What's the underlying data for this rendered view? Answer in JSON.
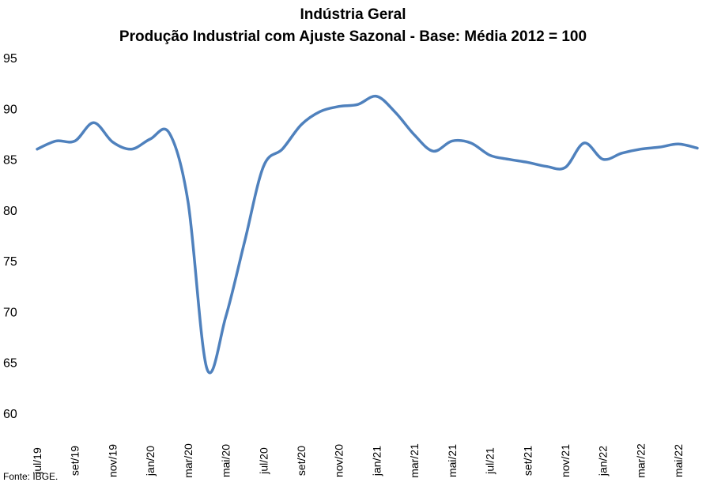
{
  "chart_data": {
    "type": "line",
    "title": "Indústria Geral",
    "subtitle": "Produção Industrial com Ajuste Sazonal - Base: Média 2012 = 100",
    "xlabel": "",
    "ylabel": "",
    "ylim": [
      60,
      95
    ],
    "yticks": [
      60,
      65,
      70,
      75,
      80,
      85,
      90,
      95
    ],
    "grid": false,
    "legend": "none",
    "line_color": "#4F81BD",
    "x": [
      "jul/19",
      "ago/19",
      "set/19",
      "out/19",
      "nov/19",
      "dez/19",
      "jan/20",
      "fev/20",
      "mar/20",
      "abr/20",
      "mai/20",
      "jun/20",
      "jul/20",
      "ago/20",
      "set/20",
      "out/20",
      "nov/20",
      "dez/20",
      "jan/21",
      "fev/21",
      "mar/21",
      "abr/21",
      "mai/21",
      "jun/21",
      "jul/21",
      "ago/21",
      "set/21",
      "out/21",
      "nov/21",
      "dez/21",
      "jan/22",
      "fev/22",
      "mar/22",
      "abr/22",
      "mai/22",
      "jun/22"
    ],
    "x_tick_labels": [
      "jul/19",
      "set/19",
      "nov/19",
      "jan/20",
      "mar/20",
      "mai/20",
      "jul/20",
      "set/20",
      "nov/20",
      "jan/21",
      "mar/21",
      "mai/21",
      "jul/21",
      "set/21",
      "nov/21",
      "jan/22",
      "mar/22",
      "mai/22"
    ],
    "series": [
      {
        "values": [
          86.0,
          86.8,
          86.8,
          88.6,
          86.7,
          86.0,
          87.0,
          87.6,
          80.8,
          64.4,
          69.5,
          76.9,
          84.3,
          86.0,
          88.4,
          89.7,
          90.2,
          90.4,
          91.2,
          89.6,
          87.4,
          85.8,
          86.8,
          86.6,
          85.4,
          85.0,
          84.7,
          84.3,
          84.2,
          86.6,
          85.0,
          85.6,
          86.0,
          86.2,
          86.5,
          86.1
        ]
      }
    ]
  },
  "source_note": "Fonte: IBGE."
}
